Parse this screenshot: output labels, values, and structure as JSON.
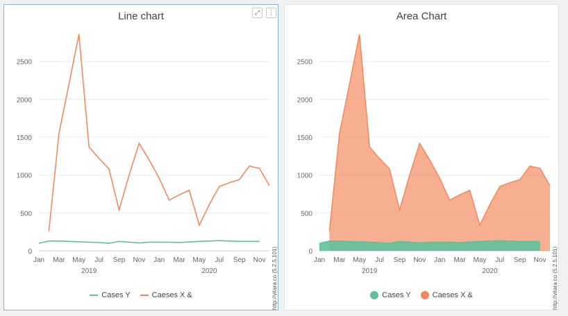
{
  "colors": {
    "cases_y": "#5dc29a",
    "caeses_x": "#f4875d"
  },
  "widgets": {
    "expand_icon": "⤢",
    "menu_icon": "⋮"
  },
  "credit": "http://vitara.co (5.2.5.101)",
  "chart_data": [
    {
      "type": "line",
      "title": "Line chart",
      "xlabel": "",
      "ylabel": "",
      "ylim": [
        0,
        2900
      ],
      "yticks": [
        0,
        500,
        1000,
        1500,
        2000,
        2500
      ],
      "x_tick_labels": [
        "Jan",
        "Mar",
        "May",
        "Jul",
        "Sep",
        "Nov",
        "Jan",
        "Mar",
        "May",
        "Jul",
        "Sep",
        "Nov"
      ],
      "x_tick_index": [
        0,
        2,
        4,
        6,
        8,
        10,
        12,
        14,
        16,
        18,
        20,
        22
      ],
      "year_labels": [
        "2019",
        "2020"
      ],
      "year_center_index": [
        5,
        17
      ],
      "months": [
        "Jan 2019",
        "Feb 2019",
        "Mar 2019",
        "Apr 2019",
        "May 2019",
        "Jun 2019",
        "Jul 2019",
        "Aug 2019",
        "Sep 2019",
        "Oct 2019",
        "Nov 2019",
        "Dec 2019",
        "Jan 2020",
        "Feb 2020",
        "Mar 2020",
        "Apr 2020",
        "May 2020",
        "Jun 2020",
        "Jul 2020",
        "Aug 2020",
        "Sep 2020",
        "Oct 2020",
        "Nov 2020",
        "Dec 2020"
      ],
      "series": [
        {
          "name": "Cases Y",
          "values": [
            100,
            130,
            130,
            125,
            120,
            115,
            110,
            100,
            125,
            115,
            105,
            115,
            115,
            115,
            110,
            118,
            125,
            130,
            135,
            130,
            125,
            125,
            125,
            null
          ]
        },
        {
          "name": "Caeses X &",
          "values": [
            null,
            260,
            1550,
            2200,
            2860,
            1370,
            1220,
            1080,
            540,
            1000,
            1420,
            1200,
            960,
            670,
            740,
            800,
            340,
            610,
            850,
            900,
            940,
            1120,
            1090,
            860
          ]
        }
      ],
      "grid": true,
      "legend": "bottom-center"
    },
    {
      "type": "area",
      "title": "Area Chart",
      "xlabel": "",
      "ylabel": "",
      "ylim": [
        0,
        2900
      ],
      "yticks": [
        0,
        500,
        1000,
        1500,
        2000,
        2500
      ],
      "x_tick_labels": [
        "Jan",
        "Mar",
        "May",
        "Jul",
        "Sep",
        "Nov",
        "Jan",
        "Mar",
        "May",
        "Jul",
        "Sep",
        "Nov"
      ],
      "x_tick_index": [
        0,
        2,
        4,
        6,
        8,
        10,
        12,
        14,
        16,
        18,
        20,
        22
      ],
      "year_labels": [
        "2019",
        "2020"
      ],
      "year_center_index": [
        5,
        17
      ],
      "months": [
        "Jan 2019",
        "Feb 2019",
        "Mar 2019",
        "Apr 2019",
        "May 2019",
        "Jun 2019",
        "Jul 2019",
        "Aug 2019",
        "Sep 2019",
        "Oct 2019",
        "Nov 2019",
        "Dec 2019",
        "Jan 2020",
        "Feb 2020",
        "Mar 2020",
        "Apr 2020",
        "May 2020",
        "Jun 2020",
        "Jul 2020",
        "Aug 2020",
        "Sep 2020",
        "Oct 2020",
        "Nov 2020",
        "Dec 2020"
      ],
      "series": [
        {
          "name": "Cases Y",
          "values": [
            100,
            130,
            130,
            125,
            120,
            115,
            110,
            100,
            125,
            115,
            105,
            115,
            115,
            115,
            110,
            118,
            125,
            130,
            135,
            130,
            125,
            125,
            125,
            null
          ]
        },
        {
          "name": "Caeses X &",
          "values": [
            null,
            260,
            1550,
            2200,
            2860,
            1370,
            1220,
            1080,
            540,
            1000,
            1420,
            1200,
            960,
            670,
            740,
            800,
            340,
            610,
            850,
            900,
            940,
            1120,
            1090,
            860
          ]
        }
      ],
      "grid": true,
      "legend": "bottom-center"
    }
  ]
}
